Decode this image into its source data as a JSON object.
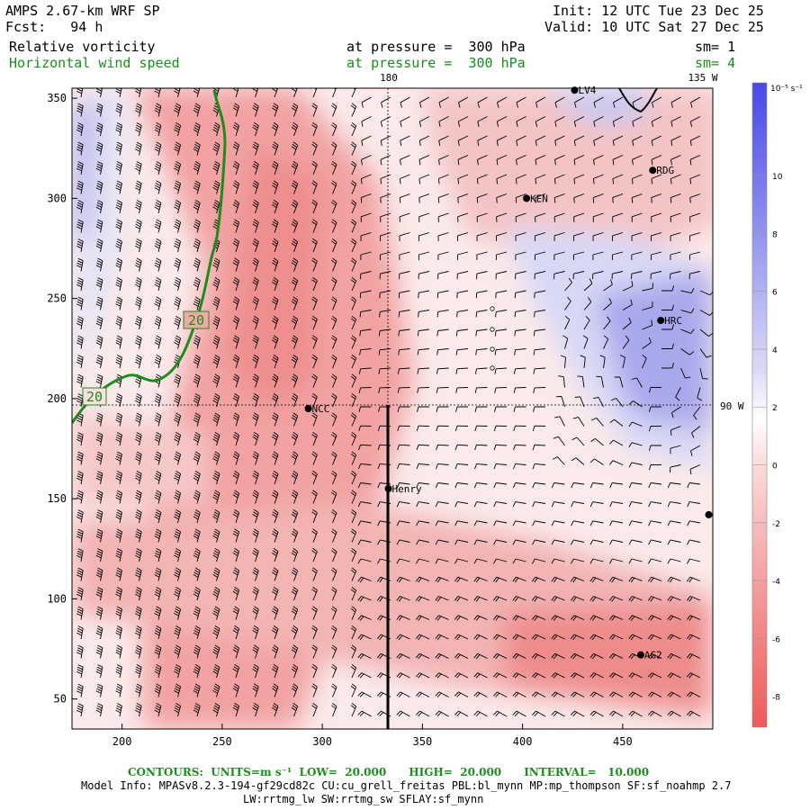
{
  "header": {
    "model": "AMPS 2.67-km WRF SP",
    "forecast": "Fcst:   94 h",
    "init": "Init: 12 UTC Tue 23 Dec 25",
    "valid": "Valid: 10 UTC Sat 27 Dec 25"
  },
  "fields": [
    {
      "name": "Relative vorticity",
      "level": "at pressure =  300 hPa",
      "smooth": "sm= 1",
      "color": "#000000"
    },
    {
      "name": "Horizontal wind speed",
      "level": "at pressure =  300 hPa",
      "smooth": "sm= 4",
      "color": "#1c8c1c"
    }
  ],
  "map": {
    "x_range": [
      175,
      495
    ],
    "y_range": [
      35,
      355
    ],
    "x_ticks": [
      "200",
      "250",
      "300",
      "350",
      "400",
      "450"
    ],
    "y_ticks": [
      "50",
      "100",
      "150",
      "200",
      "250",
      "300",
      "350"
    ],
    "meridian_labels": [
      "180",
      "135 W"
    ],
    "parallel_label": "90 W",
    "contour_labels": [
      "20",
      "20"
    ],
    "stations": [
      {
        "name": "NCC",
        "x": 293,
        "y": 195
      },
      {
        "name": "Henry",
        "x": 333,
        "y": 155
      },
      {
        "name": "KEN",
        "x": 402,
        "y": 300
      },
      {
        "name": "RDG",
        "x": 465,
        "y": 314
      },
      {
        "name": "HRC",
        "x": 469,
        "y": 239
      },
      {
        "name": "AG2",
        "x": 459,
        "y": 72
      },
      {
        "name": "LV4",
        "x": 426,
        "y": 354
      },
      {
        "name": "",
        "x": 493,
        "y": 142
      }
    ]
  },
  "colorbar": {
    "unit": "10⁻⁵ s⁻¹",
    "tick_labels": [
      "10",
      "8",
      "6",
      "4",
      "2",
      "0",
      "-2",
      "-4",
      "-6",
      "-8"
    ],
    "positive_color": "#4040e0",
    "negative_color": "#f05050"
  },
  "footer": {
    "contours_label": "CONTOURS:  UNITS=m s⁻¹  LOW=  20.000      HIGH=  20.000      INTERVAL=   10.000",
    "model_info": "Model Info: MPASv8.2.3-194-gf29cd82c CU:cu_grell_freitas PBL:bl_mynn MP:mp_thompson SF:sf_noahmp 2.7",
    "model_info2": "LW:rrtmg_lw SW:rrtmg_sw SFLAY:sf_mynn"
  }
}
